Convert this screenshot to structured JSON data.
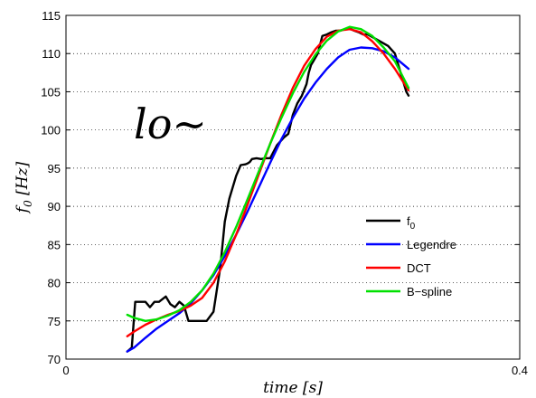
{
  "chart_data": {
    "type": "line",
    "title": "",
    "xlabel": "time [s]",
    "ylabel": "f0 [Hz]",
    "ylabel_main": "f",
    "ylabel_sub": "0",
    "ylabel_unit": "[Hz]",
    "xlim": [
      0,
      0.4
    ],
    "ylim": [
      70,
      115
    ],
    "x_ticks": [
      0,
      0.4
    ],
    "x_tick_labels": [
      "0",
      "0.4"
    ],
    "y_ticks": [
      70,
      75,
      80,
      85,
      90,
      95,
      100,
      105,
      110,
      115
    ],
    "y_tick_labels": [
      "70",
      "75",
      "80",
      "85",
      "90",
      "95",
      "100",
      "105",
      "110",
      "115"
    ],
    "grid": "horizontal-dotted",
    "legend_position": "lower-right",
    "annotation": "lo~",
    "series": [
      {
        "name": "f0",
        "legend_label": "f",
        "legend_sub": "0",
        "color": "#000000",
        "x": [
          0.054,
          0.058,
          0.061,
          0.064,
          0.07,
          0.074,
          0.078,
          0.082,
          0.088,
          0.092,
          0.096,
          0.1,
          0.104,
          0.108,
          0.112,
          0.116,
          0.12,
          0.124,
          0.13,
          0.136,
          0.14,
          0.144,
          0.15,
          0.154,
          0.158,
          0.16,
          0.162,
          0.164,
          0.168,
          0.172,
          0.176,
          0.18,
          0.186,
          0.192,
          0.196,
          0.2,
          0.204,
          0.208,
          0.212,
          0.214,
          0.216,
          0.218,
          0.222,
          0.226,
          0.23,
          0.234,
          0.238,
          0.242,
          0.246,
          0.25,
          0.254,
          0.258,
          0.262,
          0.266,
          0.272,
          0.278,
          0.284,
          0.29,
          0.296,
          0.3,
          0.302
        ],
        "y": [
          71,
          71.5,
          77.5,
          77.5,
          77.5,
          76.8,
          77.5,
          77.5,
          78.2,
          77.2,
          76.8,
          77.5,
          77,
          75,
          75,
          75,
          75,
          75,
          76.2,
          82,
          88,
          91,
          94,
          95.4,
          95.5,
          95.6,
          95.8,
          96.2,
          96.3,
          96.2,
          96.3,
          96.3,
          98,
          99,
          99.5,
          102,
          103.5,
          104.5,
          106,
          107.5,
          108.5,
          109,
          110,
          112.3,
          112.5,
          112.8,
          113,
          113,
          113.2,
          113.3,
          113,
          112.8,
          112.5,
          112.5,
          112,
          111.5,
          111,
          110,
          107,
          105,
          104.5
        ]
      },
      {
        "name": "Legendre",
        "legend_label": "Legendre",
        "color": "#0000ff",
        "x": [
          0.054,
          0.06,
          0.07,
          0.08,
          0.09,
          0.1,
          0.11,
          0.12,
          0.13,
          0.14,
          0.15,
          0.16,
          0.17,
          0.18,
          0.19,
          0.2,
          0.21,
          0.22,
          0.23,
          0.24,
          0.25,
          0.26,
          0.27,
          0.28,
          0.29,
          0.302
        ],
        "y": [
          71,
          71.5,
          72.8,
          74,
          75,
          76,
          77.3,
          79,
          81,
          83.5,
          86.3,
          89.3,
          92.5,
          95.7,
          98.8,
          101.6,
          104.1,
          106.2,
          108,
          109.5,
          110.5,
          110.8,
          110.7,
          110.3,
          109.5,
          108
        ]
      },
      {
        "name": "DCT",
        "legend_label": "DCT",
        "color": "#ff0000",
        "x": [
          0.054,
          0.06,
          0.07,
          0.08,
          0.09,
          0.1,
          0.11,
          0.12,
          0.13,
          0.14,
          0.15,
          0.16,
          0.17,
          0.18,
          0.19,
          0.2,
          0.21,
          0.22,
          0.23,
          0.24,
          0.25,
          0.26,
          0.27,
          0.28,
          0.29,
          0.302
        ],
        "y": [
          73,
          73.6,
          74.5,
          75.2,
          75.8,
          76.3,
          77,
          78,
          80,
          82.8,
          86.3,
          90.2,
          94.2,
          98.2,
          102,
          105.5,
          108.4,
          110.6,
          112.2,
          113,
          113.2,
          112.8,
          111.6,
          110,
          108,
          105.2
        ]
      },
      {
        "name": "B-spline",
        "legend_label": "B−spline",
        "color": "#00e000",
        "x": [
          0.054,
          0.06,
          0.07,
          0.08,
          0.09,
          0.1,
          0.11,
          0.12,
          0.13,
          0.14,
          0.15,
          0.16,
          0.17,
          0.18,
          0.19,
          0.2,
          0.21,
          0.22,
          0.23,
          0.24,
          0.25,
          0.26,
          0.27,
          0.28,
          0.29,
          0.302
        ],
        "y": [
          75.8,
          75.4,
          75,
          75.2,
          75.7,
          76.4,
          77.5,
          79,
          81.2,
          84,
          87.3,
          90.9,
          94.6,
          98.2,
          101.6,
          104.8,
          107.6,
          109.9,
          111.7,
          112.9,
          113.5,
          113.2,
          112.3,
          110.8,
          109,
          105.5
        ]
      }
    ]
  }
}
